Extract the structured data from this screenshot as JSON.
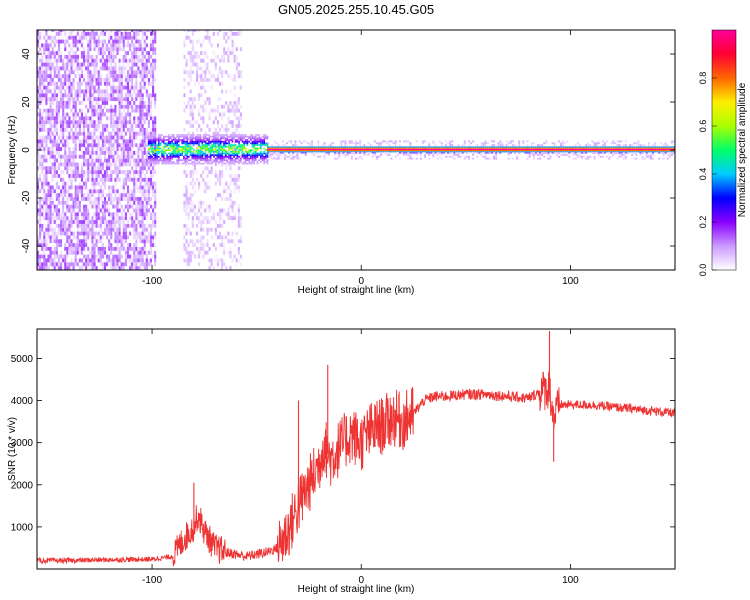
{
  "chart_data": [
    {
      "type": "heatmap",
      "title": "GN05.2025.255.10.45.G05",
      "xlabel": "Height of straight line (km)",
      "ylabel": "Frequency (Hz)",
      "xlim": [
        -155,
        150
      ],
      "ylim": [
        -50,
        50
      ],
      "xticks": [
        -100,
        0,
        100
      ],
      "yticks": [
        -40,
        -20,
        0,
        20,
        40
      ],
      "colorbar": {
        "label": "Normalized spectral amplitude",
        "range": [
          0.0,
          1.0
        ],
        "ticks": [
          0.0,
          0.2,
          0.4,
          0.6,
          0.8
        ],
        "colors": [
          "#ffffff",
          "#cc99ff",
          "#8800ff",
          "#0000ff",
          "#00ccff",
          "#00ff66",
          "#aaff00",
          "#ffee00",
          "#ff6600",
          "#ff0033",
          "#ff0099"
        ]
      },
      "regions": [
        {
          "x_from": -155,
          "x_to": -98,
          "freq_from": -50,
          "freq_to": 50,
          "amplitude": 0.1
        },
        {
          "x_from": -85,
          "x_to": -57,
          "freq_from": -50,
          "freq_to": 50,
          "amplitude": 0.05
        },
        {
          "x_from": -102,
          "x_to": -45,
          "freq_from": -6,
          "freq_to": 6,
          "amplitude": 0.4
        },
        {
          "x_from": -45,
          "x_to": 150,
          "freq_from": -1.5,
          "freq_to": 1.5,
          "amplitude": 1.0
        }
      ]
    },
    {
      "type": "line",
      "xlabel": "Height of straight line (km)",
      "ylabel": "SNR (10 * v/v)",
      "xlim": [
        -155,
        150
      ],
      "ylim": [
        0,
        5700
      ],
      "xticks": [
        -100,
        0,
        100
      ],
      "yticks": [
        1000,
        2000,
        3000,
        4000,
        5000
      ],
      "color": "#ee3333",
      "series": [
        {
          "x": [
            -155,
            -140,
            -120,
            -100,
            -90,
            -85,
            -80,
            -78,
            -75,
            -70,
            -65,
            -60,
            -55,
            -50,
            -45,
            -40,
            -35,
            -30,
            -25,
            -20,
            -18,
            -15,
            -10,
            -5,
            0,
            5,
            10,
            15,
            20,
            25,
            30,
            35,
            40,
            50,
            60,
            70,
            80,
            85,
            90,
            92,
            95,
            100,
            110,
            120,
            130,
            140,
            150
          ],
          "y": [
            200,
            200,
            220,
            230,
            300,
            700,
            1000,
            1300,
            900,
            500,
            400,
            350,
            300,
            350,
            400,
            500,
            900,
            1500,
            2000,
            2500,
            3000,
            2600,
            2900,
            3200,
            3000,
            3300,
            3400,
            3600,
            3500,
            3700,
            4000,
            4100,
            4100,
            4150,
            4150,
            4100,
            4050,
            4200,
            4300,
            3600,
            3900,
            3900,
            3900,
            3850,
            3800,
            3750,
            3700
          ]
        }
      ],
      "spikes": [
        {
          "x": -80,
          "y": 2050
        },
        {
          "x": -30,
          "y": 4000
        },
        {
          "x": -16,
          "y": 4850
        },
        {
          "x": 18,
          "y": 4150
        },
        {
          "x": 90,
          "y": 5650
        },
        {
          "x": 92,
          "y": 2550
        }
      ]
    }
  ]
}
